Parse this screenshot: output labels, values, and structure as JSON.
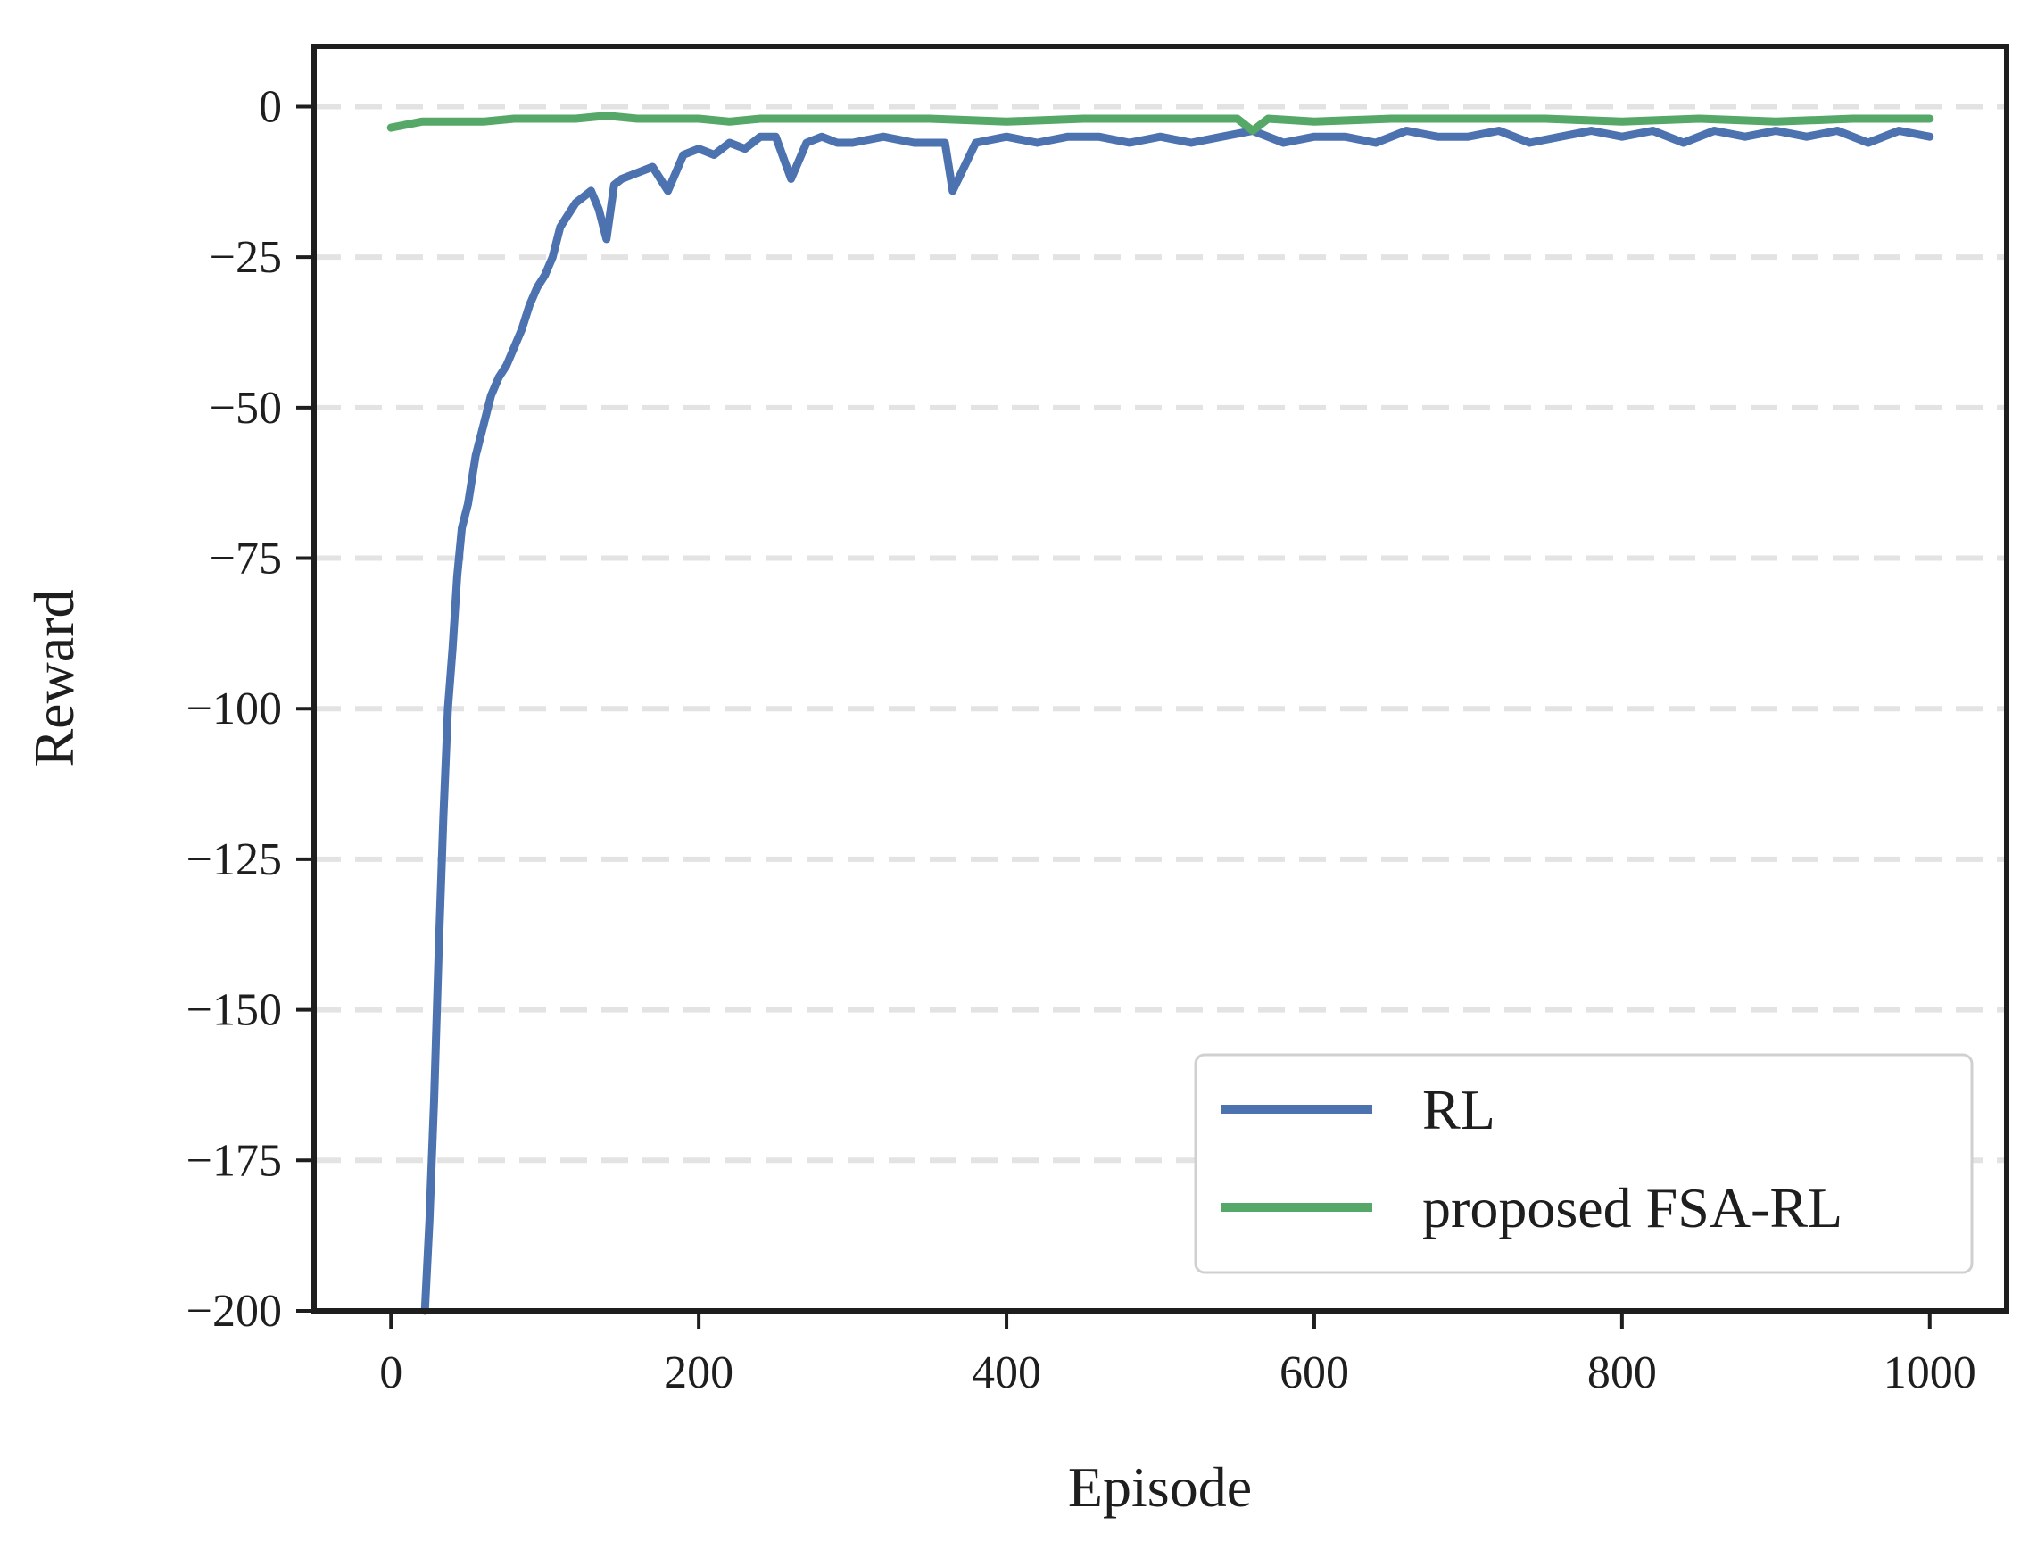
{
  "chart_data": {
    "type": "line",
    "title": "",
    "xlabel": "Episode",
    "ylabel": "Reward",
    "xlim": [
      -50,
      1050
    ],
    "ylim": [
      -200,
      10
    ],
    "xticks": [
      0,
      200,
      400,
      600,
      800,
      1000
    ],
    "xtick_labels": [
      "0",
      "200",
      "400",
      "600",
      "800",
      "1000"
    ],
    "yticks": [
      0,
      -25,
      -50,
      -75,
      -100,
      -125,
      -150,
      -175,
      -200
    ],
    "ytick_labels": [
      "0",
      "−25",
      "−50",
      "−75",
      "−100",
      "−125",
      "−150",
      "−175",
      "−200"
    ],
    "grid": "horizontal dashed",
    "legend_position": "lower-right",
    "series": [
      {
        "name": "RL",
        "color": "#4c72b0",
        "x": [
          22,
          25,
          28,
          31,
          34,
          37,
          40,
          43,
          46,
          50,
          55,
          60,
          65,
          70,
          75,
          80,
          85,
          90,
          95,
          100,
          105,
          110,
          115,
          120,
          125,
          130,
          135,
          140,
          145,
          150,
          160,
          170,
          180,
          190,
          200,
          210,
          220,
          230,
          240,
          250,
          260,
          270,
          280,
          290,
          300,
          320,
          340,
          360,
          365,
          380,
          400,
          420,
          440,
          460,
          480,
          500,
          520,
          540,
          560,
          580,
          600,
          620,
          640,
          660,
          680,
          700,
          720,
          740,
          760,
          780,
          800,
          820,
          840,
          860,
          880,
          900,
          920,
          940,
          960,
          980,
          1000
        ],
        "y": [
          -200,
          -185,
          -165,
          -140,
          -118,
          -100,
          -90,
          -78,
          -70,
          -66,
          -58,
          -53,
          -48,
          -45,
          -43,
          -40,
          -37,
          -33,
          -30,
          -28,
          -25,
          -20,
          -18,
          -16,
          -15,
          -14,
          -17,
          -22,
          -13,
          -12,
          -11,
          -10,
          -14,
          -8,
          -7,
          -8,
          -6,
          -7,
          -5,
          -5,
          -12,
          -6,
          -5,
          -6,
          -6,
          -5,
          -6,
          -6,
          -14,
          -6,
          -5,
          -6,
          -5,
          -5,
          -6,
          -5,
          -6,
          -5,
          -4,
          -6,
          -5,
          -5,
          -6,
          -4,
          -5,
          -5,
          -4,
          -6,
          -5,
          -4,
          -5,
          -4,
          -6,
          -4,
          -5,
          -4,
          -5,
          -4,
          -6,
          -4,
          -5
        ]
      },
      {
        "name": "proposed FSA-RL",
        "color": "#55a868",
        "x": [
          0,
          20,
          40,
          60,
          80,
          100,
          120,
          140,
          160,
          180,
          200,
          220,
          240,
          260,
          280,
          300,
          350,
          400,
          450,
          500,
          550,
          560,
          570,
          600,
          650,
          700,
          750,
          800,
          850,
          900,
          950,
          1000
        ],
        "y": [
          -3.5,
          -2.5,
          -2.5,
          -2.5,
          -2,
          -2,
          -2,
          -1.5,
          -2,
          -2,
          -2,
          -2.5,
          -2,
          -2,
          -2,
          -2,
          -2,
          -2.5,
          -2,
          -2,
          -2,
          -4,
          -2,
          -2.5,
          -2,
          -2,
          -2,
          -2.5,
          -2,
          -2.5,
          -2,
          -2
        ]
      }
    ]
  }
}
